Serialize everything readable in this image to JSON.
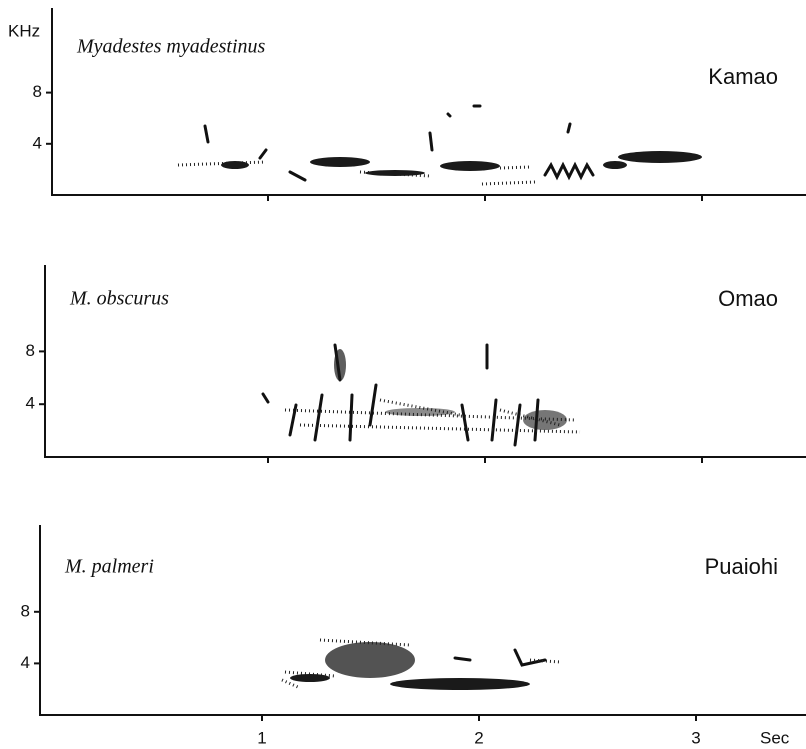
{
  "y_unit": "KHz",
  "x_unit": "Sec",
  "xticks": [
    1,
    2,
    3
  ],
  "panels": [
    {
      "species": "Myadestes myadestinus",
      "common_name": "Kamao",
      "yticks": [
        4,
        8
      ]
    },
    {
      "species": "M. obscurus",
      "common_name": "Omao",
      "yticks": [
        4,
        8
      ]
    },
    {
      "species": "M. palmeri",
      "common_name": "Puaiohi",
      "yticks": [
        4,
        8
      ]
    }
  ]
}
